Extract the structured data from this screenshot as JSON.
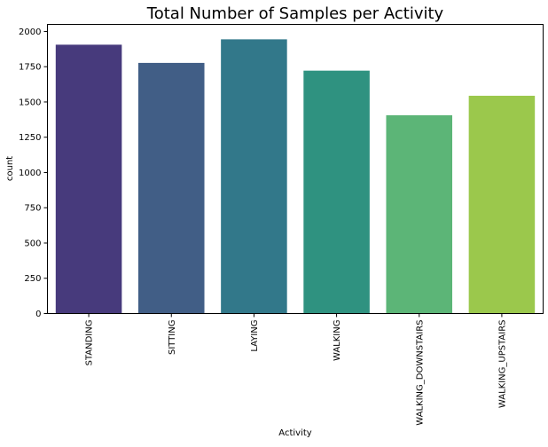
{
  "chart_data": {
    "type": "bar",
    "title": "Total Number of Samples per Activity",
    "xlabel": "Activity",
    "ylabel": "count",
    "categories": [
      "STANDING",
      "SITTING",
      "LAYING",
      "WALKING",
      "WALKING_DOWNSTAIRS",
      "WALKING_UPSTAIRS"
    ],
    "values": [
      1906,
      1777,
      1944,
      1722,
      1406,
      1544
    ],
    "ylim": [
      0,
      2050
    ],
    "yticks": [
      0,
      250,
      500,
      750,
      1000,
      1250,
      1500,
      1750,
      2000
    ],
    "grid": false,
    "colors": [
      "#473a7c",
      "#415e86",
      "#32788a",
      "#2f9280",
      "#5cb577",
      "#9bc84c"
    ]
  }
}
